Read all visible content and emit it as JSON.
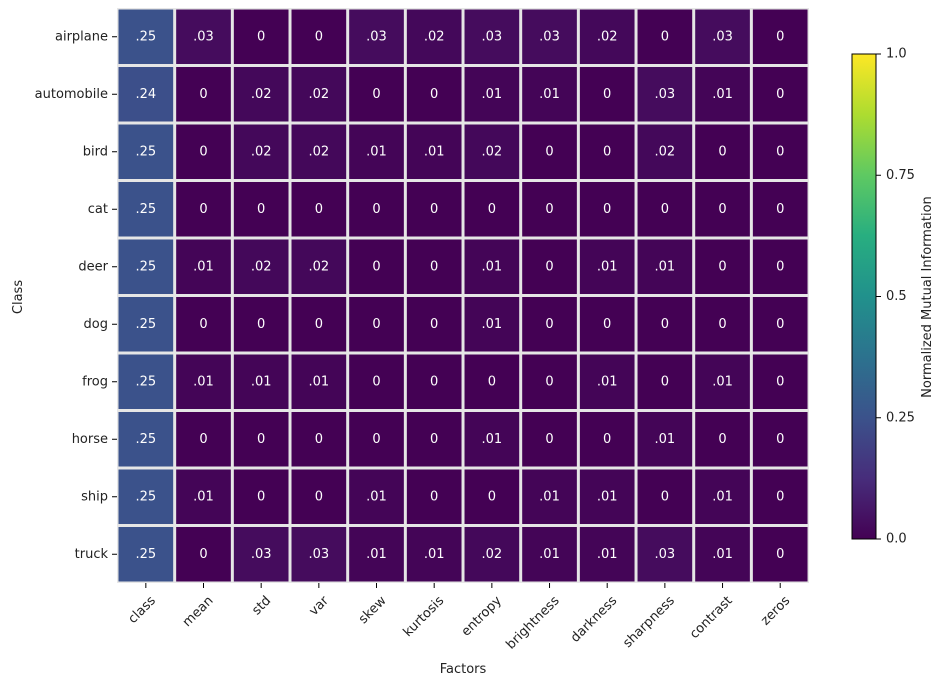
{
  "chart_data": {
    "type": "heatmap",
    "title": "",
    "xlabel": "Factors",
    "ylabel": "Class",
    "x_categories": [
      "class",
      "mean",
      "std",
      "var",
      "skew",
      "kurtosis",
      "entropy",
      "brightness",
      "darkness",
      "sharpness",
      "contrast",
      "zeros"
    ],
    "y_categories": [
      "airplane",
      "automobile",
      "bird",
      "cat",
      "deer",
      "dog",
      "frog",
      "horse",
      "ship",
      "truck"
    ],
    "values": [
      [
        0.25,
        0.03,
        0,
        0,
        0.03,
        0.02,
        0.03,
        0.03,
        0.02,
        0,
        0.03,
        0
      ],
      [
        0.24,
        0,
        0.02,
        0.02,
        0,
        0,
        0.01,
        0.01,
        0,
        0.03,
        0.01,
        0
      ],
      [
        0.25,
        0,
        0.02,
        0.02,
        0.01,
        0.01,
        0.02,
        0,
        0,
        0.02,
        0,
        0
      ],
      [
        0.25,
        0,
        0,
        0,
        0,
        0,
        0,
        0,
        0,
        0,
        0,
        0
      ],
      [
        0.25,
        0.01,
        0.02,
        0.02,
        0,
        0,
        0.01,
        0,
        0.01,
        0.01,
        0,
        0
      ],
      [
        0.25,
        0,
        0,
        0,
        0,
        0,
        0.01,
        0,
        0,
        0,
        0,
        0
      ],
      [
        0.25,
        0.01,
        0.01,
        0.01,
        0,
        0,
        0,
        0,
        0.01,
        0,
        0.01,
        0
      ],
      [
        0.25,
        0,
        0,
        0,
        0,
        0,
        0.01,
        0,
        0,
        0.01,
        0,
        0
      ],
      [
        0.25,
        0.01,
        0,
        0,
        0.01,
        0,
        0,
        0.01,
        0.01,
        0,
        0.01,
        0
      ],
      [
        0.25,
        0,
        0.03,
        0.03,
        0.01,
        0.01,
        0.02,
        0.01,
        0.01,
        0.03,
        0.01,
        0
      ]
    ],
    "cell_labels": [
      [
        ".25",
        ".03",
        "0",
        "0",
        ".03",
        ".02",
        ".03",
        ".03",
        ".02",
        "0",
        ".03",
        "0"
      ],
      [
        ".24",
        "0",
        ".02",
        ".02",
        "0",
        "0",
        ".01",
        ".01",
        "0",
        ".03",
        ".01",
        "0"
      ],
      [
        ".25",
        "0",
        ".02",
        ".02",
        ".01",
        ".01",
        ".02",
        "0",
        "0",
        ".02",
        "0",
        "0"
      ],
      [
        ".25",
        "0",
        "0",
        "0",
        "0",
        "0",
        "0",
        "0",
        "0",
        "0",
        "0",
        "0"
      ],
      [
        ".25",
        ".01",
        ".02",
        ".02",
        "0",
        "0",
        ".01",
        "0",
        ".01",
        ".01",
        "0",
        "0"
      ],
      [
        ".25",
        "0",
        "0",
        "0",
        "0",
        "0",
        ".01",
        "0",
        "0",
        "0",
        "0",
        "0"
      ],
      [
        ".25",
        ".01",
        ".01",
        ".01",
        "0",
        "0",
        "0",
        "0",
        ".01",
        "0",
        ".01",
        "0"
      ],
      [
        ".25",
        "0",
        "0",
        "0",
        "0",
        "0",
        ".01",
        "0",
        "0",
        ".01",
        "0",
        "0"
      ],
      [
        ".25",
        ".01",
        "0",
        "0",
        ".01",
        "0",
        "0",
        ".01",
        ".01",
        "0",
        ".01",
        "0"
      ],
      [
        ".25",
        "0",
        ".03",
        ".03",
        ".01",
        ".01",
        ".02",
        ".01",
        ".01",
        ".03",
        ".01",
        "0"
      ]
    ],
    "colormap": "viridis",
    "value_range": [
      0,
      1
    ],
    "colorbar": {
      "label": "Normalized Mutual Information",
      "ticks": [
        0,
        0.25,
        0.5,
        0.75,
        1
      ],
      "tick_labels": [
        "0.0",
        "0.25",
        "0.5",
        "0.75",
        "1.0"
      ],
      "placement": "right"
    },
    "grid": false,
    "cell_border_color": "#e6e6e6"
  }
}
